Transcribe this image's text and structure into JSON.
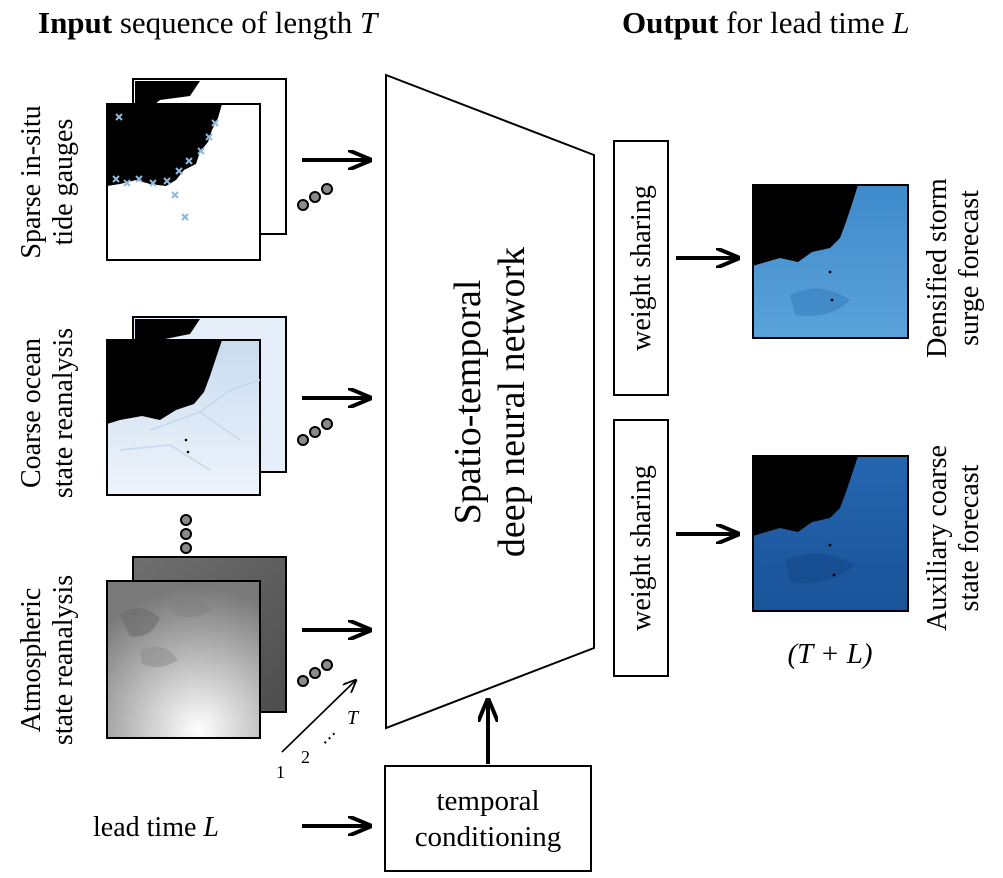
{
  "header": {
    "input_bold": "Input",
    "input_rest": " sequence of length ",
    "input_var": "T",
    "output_bold": "Output",
    "output_rest": " for lead time ",
    "output_var": "L"
  },
  "inputs": {
    "tide_line1": "Sparse in-situ",
    "tide_line2": "tide gauges",
    "ocean_line1": "Coarse ocean",
    "ocean_line2": "state reanalysis",
    "atmo_line1": "Atmospheric",
    "atmo_line2": "state reanalysis",
    "lead_time_text": "lead time ",
    "lead_time_var": "L"
  },
  "sequence_axis": {
    "label_1": "1",
    "label_2": "2",
    "label_dots": "⋯",
    "label_T": "T"
  },
  "network": {
    "line1": "Spatio-temporal",
    "line2": "deep neural network"
  },
  "conditioning": {
    "line1": "temporal",
    "line2": "conditioning"
  },
  "heads": {
    "top_label": "weight sharing",
    "bottom_label": "weight sharing"
  },
  "outputs": {
    "storm_line1": "Densified storm",
    "storm_line2": "surge forecast",
    "aux_line1": "Auxiliary coarse",
    "aux_line2": "state forecast",
    "time_label": "(T + L)"
  },
  "colors": {
    "land": "#000000",
    "tide_background": "#ffffff",
    "tide_markers": "#8fb8db",
    "ocean_light": "#dce8f5",
    "ocean_mid": "#b7cfe8",
    "surge_forecast": "#4a92cf",
    "surge_forecast_dark": "#2e74b8",
    "aux_forecast": "#1f5ea8",
    "aux_forecast_dark": "#14478a",
    "atmo_dark": "#555555",
    "atmo_light": "#f2f2f2",
    "dot_fill": "#8a8a8a",
    "frame": "#000000"
  },
  "icons": {
    "arrow": "right-arrow-icon",
    "up_arrow": "up-arrow-icon",
    "ellipsis": "three-dots-icon"
  }
}
